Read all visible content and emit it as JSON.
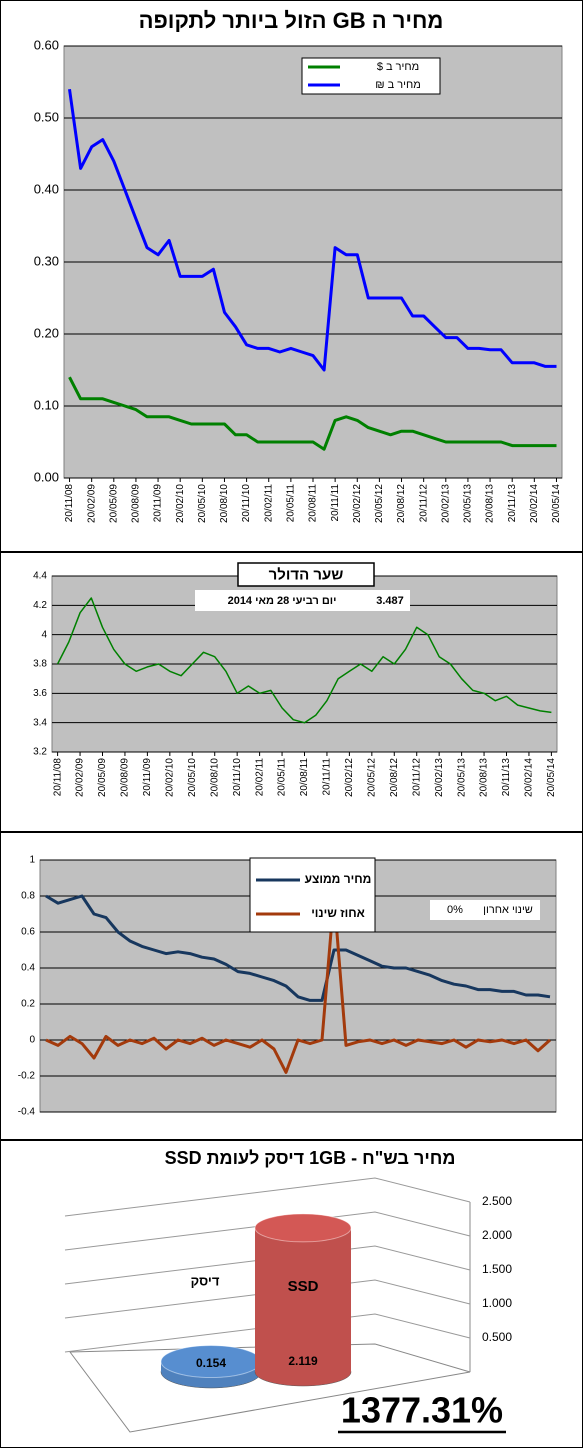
{
  "chart_data": [
    {
      "type": "line",
      "title": "מחיר ה GB הזול ביותר לתקופה",
      "categories": [
        "20/11/08",
        null,
        "20/02/09",
        null,
        "20/05/09",
        null,
        "20/08/09",
        null,
        "20/11/09",
        null,
        "20/02/10",
        null,
        "20/05/10",
        null,
        "20/08/10",
        null,
        "20/11/10",
        null,
        "20/02/11",
        null,
        "20/05/11",
        null,
        "20/08/11",
        null,
        "20/11/11",
        null,
        "20/02/12",
        null,
        "20/05/12",
        null,
        "20/08/12",
        null,
        "20/11/12",
        null,
        "20/02/13",
        null,
        "20/05/13",
        null,
        "20/08/13",
        null,
        "20/11/13",
        null,
        "20/02/14",
        null,
        "20/05/14"
      ],
      "series": [
        {
          "name": "מחיר ב $",
          "color": "#008000",
          "values": [
            0.14,
            0.11,
            0.11,
            0.11,
            0.105,
            0.1,
            0.095,
            0.085,
            0.085,
            0.085,
            0.08,
            0.075,
            0.075,
            0.075,
            0.075,
            0.06,
            0.06,
            0.05,
            0.05,
            0.05,
            0.05,
            0.05,
            0.05,
            0.04,
            0.08,
            0.085,
            0.08,
            0.07,
            0.065,
            0.06,
            0.065,
            0.065,
            0.06,
            0.055,
            0.05,
            0.05,
            0.05,
            0.05,
            0.05,
            0.05,
            0.045,
            0.045,
            0.045,
            0.045,
            0.045
          ]
        },
        {
          "name": "מחיר ב ₪",
          "color": "#0000ff",
          "values": [
            0.54,
            0.43,
            0.46,
            0.47,
            0.44,
            0.4,
            0.36,
            0.32,
            0.31,
            0.33,
            0.28,
            0.28,
            0.28,
            0.29,
            0.23,
            0.21,
            0.185,
            0.18,
            0.18,
            0.175,
            0.18,
            0.175,
            0.17,
            0.15,
            0.32,
            0.31,
            0.31,
            0.25,
            0.25,
            0.25,
            0.25,
            0.225,
            0.225,
            0.21,
            0.195,
            0.195,
            0.18,
            0.18,
            0.178,
            0.178,
            0.16,
            0.16,
            0.16,
            0.155,
            0.155
          ]
        }
      ],
      "ylim": [
        0,
        0.6
      ],
      "yticks": [
        {
          "value": 0,
          "label": "0.00"
        },
        {
          "value": 0.1,
          "label": "0.10"
        },
        {
          "value": 0.2,
          "label": "0.20"
        },
        {
          "value": 0.3,
          "label": "0.30"
        },
        {
          "value": 0.4,
          "label": "0.40"
        },
        {
          "value": 0.5,
          "label": "0.50"
        },
        {
          "value": 0.6,
          "label": "0.60"
        }
      ],
      "grid": true,
      "legend": "top"
    },
    {
      "type": "line",
      "title": "שער הדולר",
      "annotations": [
        "יום רביעי 28 מאי 2014",
        "3.487"
      ],
      "categories": [
        "20/11/08",
        null,
        "20/02/09",
        null,
        "20/05/09",
        null,
        "20/08/09",
        null,
        "20/11/09",
        null,
        "20/02/10",
        null,
        "20/05/10",
        null,
        "20/08/10",
        null,
        "20/11/10",
        null,
        "20/02/11",
        null,
        "20/05/11",
        null,
        "20/08/11",
        null,
        "20/11/11",
        null,
        "20/02/12",
        null,
        "20/05/12",
        null,
        "20/08/12",
        null,
        "20/11/12",
        null,
        "20/02/13",
        null,
        "20/05/13",
        null,
        "20/08/13",
        null,
        "20/11/13",
        null,
        "20/02/14",
        null,
        "20/05/14"
      ],
      "values": [
        3.8,
        3.95,
        4.15,
        4.25,
        4.05,
        3.9,
        3.8,
        3.75,
        3.78,
        3.8,
        3.75,
        3.72,
        3.8,
        3.88,
        3.85,
        3.75,
        3.6,
        3.65,
        3.6,
        3.62,
        3.5,
        3.42,
        3.4,
        3.45,
        3.55,
        3.7,
        3.75,
        3.8,
        3.75,
        3.85,
        3.8,
        3.9,
        4.05,
        4.0,
        3.85,
        3.8,
        3.7,
        3.62,
        3.6,
        3.55,
        3.58,
        3.52,
        3.5,
        3.48,
        3.47
      ],
      "color": "#008000",
      "ylim": [
        3.2,
        4.4
      ],
      "yticks": [
        3.2,
        3.4,
        3.6,
        3.8,
        4,
        4.2,
        4.4
      ],
      "grid": true
    },
    {
      "type": "line",
      "annotations": [
        "שינוי אחרון",
        "0%"
      ],
      "categories": [
        null,
        null,
        null,
        null,
        null,
        null,
        null,
        null,
        null,
        null,
        null,
        null,
        null,
        null,
        null,
        null,
        null,
        null,
        null,
        null,
        null,
        null,
        null,
        null,
        null,
        null,
        null,
        null,
        null,
        null,
        null,
        null,
        null,
        null,
        null,
        null,
        null,
        null,
        null,
        null,
        null,
        null,
        null
      ],
      "series": [
        {
          "name": "מחיר ממוצע",
          "color": "#17375e",
          "values": [
            0.8,
            0.76,
            0.78,
            0.8,
            0.7,
            0.68,
            0.6,
            0.55,
            0.52,
            0.5,
            0.48,
            0.49,
            0.48,
            0.46,
            0.45,
            0.42,
            0.38,
            0.37,
            0.35,
            0.33,
            0.3,
            0.24,
            0.22,
            0.22,
            0.5,
            0.5,
            0.47,
            0.44,
            0.41,
            0.4,
            0.4,
            0.38,
            0.36,
            0.33,
            0.31,
            0.3,
            0.28,
            0.28,
            0.27,
            0.27,
            0.25,
            0.25,
            0.24
          ]
        },
        {
          "name": "אחוז שינוי",
          "color": "#a33a0c",
          "values": [
            0,
            -0.03,
            0.02,
            -0.02,
            -0.1,
            0.02,
            -0.03,
            0,
            -0.02,
            0.01,
            -0.05,
            0,
            -0.02,
            0.01,
            -0.03,
            0,
            -0.02,
            -0.04,
            0,
            -0.05,
            -0.18,
            0,
            -0.02,
            0,
            0.8,
            -0.03,
            -0.01,
            0,
            -0.02,
            0,
            -0.03,
            0,
            -0.01,
            -0.02,
            0,
            -0.04,
            0,
            -0.01,
            0,
            -0.02,
            0,
            -0.06,
            0
          ]
        }
      ],
      "ylim": [
        -0.4,
        1
      ],
      "yticks": [
        -0.4,
        -0.2,
        0,
        0.2,
        0.4,
        0.6,
        0.8,
        1
      ],
      "grid": true,
      "legend": "top"
    },
    {
      "type": "cylinder",
      "title": "מחיר בש\"ח - 1GB דיסק לעומת SSD",
      "categories": [
        "דיסק",
        "SSD"
      ],
      "values": [
        0.154,
        2.119
      ],
      "colors": [
        "#4f81bd",
        "#c0504d"
      ],
      "ylim": [
        0,
        2.5
      ],
      "yticks": [
        {
          "value": 0.5,
          "label": "0.500"
        },
        {
          "value": 1,
          "label": "1.000"
        },
        {
          "value": 1.5,
          "label": "1.500"
        },
        {
          "value": 2,
          "label": "2.000"
        },
        {
          "value": 2.5,
          "label": "2.500"
        }
      ],
      "annotation": "1377.31%"
    }
  ]
}
